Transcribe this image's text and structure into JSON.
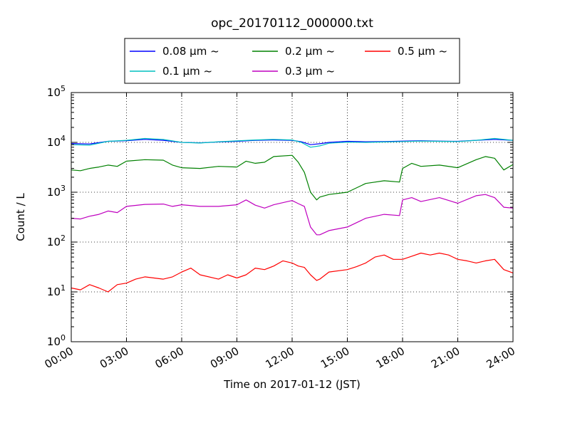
{
  "chart_data": {
    "type": "line",
    "title": "opc_20170112_000000.txt",
    "xlabel": "Time on 2017-01-12 (JST)",
    "ylabel": "Count / L",
    "y_scale": "log",
    "ylim": [
      1,
      100000
    ],
    "xlim": [
      "00:00",
      "24:00"
    ],
    "x_ticks": [
      "00:00",
      "03:00",
      "06:00",
      "09:00",
      "12:00",
      "15:00",
      "18:00",
      "21:00",
      "24:00"
    ],
    "y_ticks": [
      {
        "base": "10",
        "exp": "0"
      },
      {
        "base": "10",
        "exp": "1"
      },
      {
        "base": "10",
        "exp": "2"
      },
      {
        "base": "10",
        "exp": "3"
      },
      {
        "base": "10",
        "exp": "4"
      },
      {
        "base": "10",
        "exp": "5"
      }
    ],
    "grid": true,
    "legend_position": "top",
    "series": [
      {
        "name": "0.08 μm ~",
        "color": "#0000ff",
        "x": [
          "00:00",
          "01:00",
          "02:00",
          "03:00",
          "04:00",
          "05:00",
          "06:00",
          "07:00",
          "08:00",
          "09:00",
          "10:00",
          "11:00",
          "12:00",
          "12:30",
          "13:00",
          "13:30",
          "14:00",
          "15:00",
          "16:00",
          "17:00",
          "18:00",
          "19:00",
          "20:00",
          "21:00",
          "22:00",
          "23:00",
          "24:00"
        ],
        "values": [
          9500,
          9300,
          10500,
          10800,
          11500,
          11000,
          10000,
          9800,
          10200,
          10500,
          11000,
          11200,
          11000,
          10300,
          9000,
          9400,
          10000,
          10500,
          10300,
          10400,
          10600,
          10800,
          10600,
          10500,
          11000,
          11500,
          11000
        ]
      },
      {
        "name": "0.1 μm ~",
        "color": "#00bfbf",
        "x": [
          "00:00",
          "01:00",
          "02:00",
          "03:00",
          "04:00",
          "05:00",
          "06:00",
          "07:00",
          "08:00",
          "09:00",
          "10:00",
          "11:00",
          "12:00",
          "12:30",
          "13:00",
          "13:30",
          "14:00",
          "15:00",
          "16:00",
          "17:00",
          "18:00",
          "19:00",
          "20:00",
          "21:00",
          "22:00",
          "23:00",
          "24:00"
        ],
        "values": [
          9000,
          8800,
          10500,
          11000,
          12000,
          11500,
          10000,
          9700,
          10300,
          10700,
          11200,
          11500,
          11200,
          10000,
          8000,
          8500,
          9600,
          10100,
          10000,
          10200,
          10400,
          10600,
          10500,
          10400,
          11000,
          12000,
          11000
        ]
      },
      {
        "name": "0.2 μm ~",
        "color": "#008000",
        "x": [
          "00:00",
          "00:30",
          "01:00",
          "01:30",
          "02:00",
          "02:30",
          "03:00",
          "04:00",
          "05:00",
          "05:30",
          "06:00",
          "07:00",
          "08:00",
          "09:00",
          "09:30",
          "10:00",
          "10:30",
          "11:00",
          "12:00",
          "12:20",
          "12:40",
          "13:00",
          "13:20",
          "13:30",
          "14:00",
          "15:00",
          "16:00",
          "17:00",
          "17:50",
          "18:00",
          "18:30",
          "19:00",
          "20:00",
          "21:00",
          "22:00",
          "22:30",
          "23:00",
          "23:30",
          "24:00"
        ],
        "values": [
          2800,
          2700,
          3000,
          3200,
          3500,
          3300,
          4200,
          4500,
          4400,
          3500,
          3100,
          3000,
          3300,
          3200,
          4200,
          3800,
          4000,
          5200,
          5500,
          4000,
          2500,
          1000,
          700,
          800,
          900,
          1000,
          1500,
          1700,
          1600,
          3000,
          3800,
          3300,
          3500,
          3100,
          4500,
          5200,
          4800,
          2800,
          3600
        ]
      },
      {
        "name": "0.3 μm ~",
        "color": "#bf00bf",
        "x": [
          "00:00",
          "00:30",
          "01:00",
          "01:30",
          "02:00",
          "02:30",
          "03:00",
          "04:00",
          "05:00",
          "05:30",
          "06:00",
          "07:00",
          "08:00",
          "09:00",
          "09:30",
          "10:00",
          "10:30",
          "11:00",
          "12:00",
          "12:20",
          "12:40",
          "13:00",
          "13:20",
          "13:30",
          "14:00",
          "15:00",
          "16:00",
          "17:00",
          "17:50",
          "18:00",
          "18:30",
          "19:00",
          "20:00",
          "21:00",
          "22:00",
          "22:30",
          "23:00",
          "23:30",
          "24:00"
        ],
        "values": [
          300,
          290,
          330,
          360,
          420,
          390,
          520,
          570,
          580,
          520,
          560,
          520,
          520,
          560,
          700,
          550,
          480,
          560,
          680,
          590,
          520,
          200,
          140,
          140,
          170,
          200,
          300,
          360,
          340,
          700,
          780,
          650,
          780,
          600,
          850,
          900,
          780,
          500,
          480
        ]
      },
      {
        "name": "0.5 μm ~",
        "color": "#ff0000",
        "x": [
          "00:00",
          "00:30",
          "01:00",
          "01:30",
          "02:00",
          "02:30",
          "03:00",
          "03:30",
          "04:00",
          "05:00",
          "05:30",
          "06:00",
          "06:30",
          "07:00",
          "08:00",
          "08:30",
          "09:00",
          "09:30",
          "10:00",
          "10:30",
          "11:00",
          "11:30",
          "12:00",
          "12:20",
          "12:40",
          "13:00",
          "13:20",
          "13:30",
          "14:00",
          "15:00",
          "15:30",
          "16:00",
          "16:30",
          "17:00",
          "17:30",
          "18:00",
          "18:30",
          "19:00",
          "19:30",
          "20:00",
          "20:30",
          "21:00",
          "21:30",
          "22:00",
          "22:30",
          "23:00",
          "23:30",
          "24:00"
        ],
        "values": [
          12,
          11,
          14,
          12,
          10,
          14,
          15,
          18,
          20,
          18,
          20,
          25,
          30,
          22,
          18,
          22,
          19,
          22,
          30,
          28,
          33,
          42,
          38,
          33,
          31,
          22,
          17,
          18,
          25,
          28,
          32,
          38,
          50,
          55,
          45,
          45,
          52,
          60,
          55,
          60,
          55,
          45,
          42,
          38,
          42,
          45,
          28,
          24
        ]
      }
    ]
  }
}
